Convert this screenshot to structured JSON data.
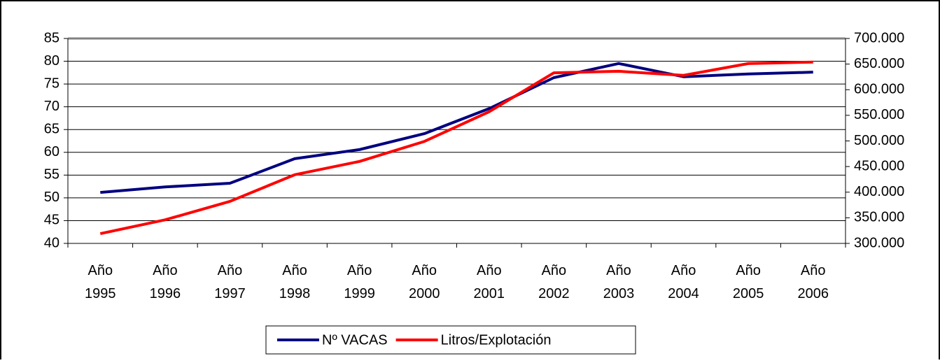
{
  "chart_data": {
    "type": "line",
    "categories": [
      "Año 1995",
      "Año 1996",
      "Año 1997",
      "Año 1998",
      "Año 1999",
      "Año 2000",
      "Año 2001",
      "Año 2002",
      "Año 2003",
      "Año 2004",
      "Año 2005",
      "Año 2006"
    ],
    "series": [
      {
        "name": "Nº VACAS",
        "color": "#000080",
        "values": [
          51.2,
          52.4,
          53.2,
          58.6,
          60.6,
          64.1,
          69.6,
          76.4,
          79.5,
          76.6,
          77.2,
          77.6
        ]
      },
      {
        "name": "Litros/Explotación",
        "color": "#ff0000",
        "axis": "y2",
        "values": [
          319000,
          346000,
          382000,
          434000,
          460000,
          499000,
          557000,
          633000,
          636000,
          628000,
          651000,
          654000
        ]
      }
    ],
    "ylim": [
      40,
      85
    ],
    "yticks": [
      40,
      45,
      50,
      55,
      60,
      65,
      70,
      75,
      80,
      85
    ],
    "y2lim": [
      300000,
      700000
    ],
    "y2ticks": [
      {
        "value": 300000,
        "label": "300.000"
      },
      {
        "value": 350000,
        "label": "350.000"
      },
      {
        "value": 400000,
        "label": "400.000"
      },
      {
        "value": 450000,
        "label": "450.000"
      },
      {
        "value": 500000,
        "label": "500.000"
      },
      {
        "value": 550000,
        "label": "550.000"
      },
      {
        "value": 600000,
        "label": "600.000"
      },
      {
        "value": 650000,
        "label": "650.000"
      },
      {
        "value": 700000,
        "label": "700.000"
      }
    ],
    "grid": true,
    "legend": "bottom"
  }
}
